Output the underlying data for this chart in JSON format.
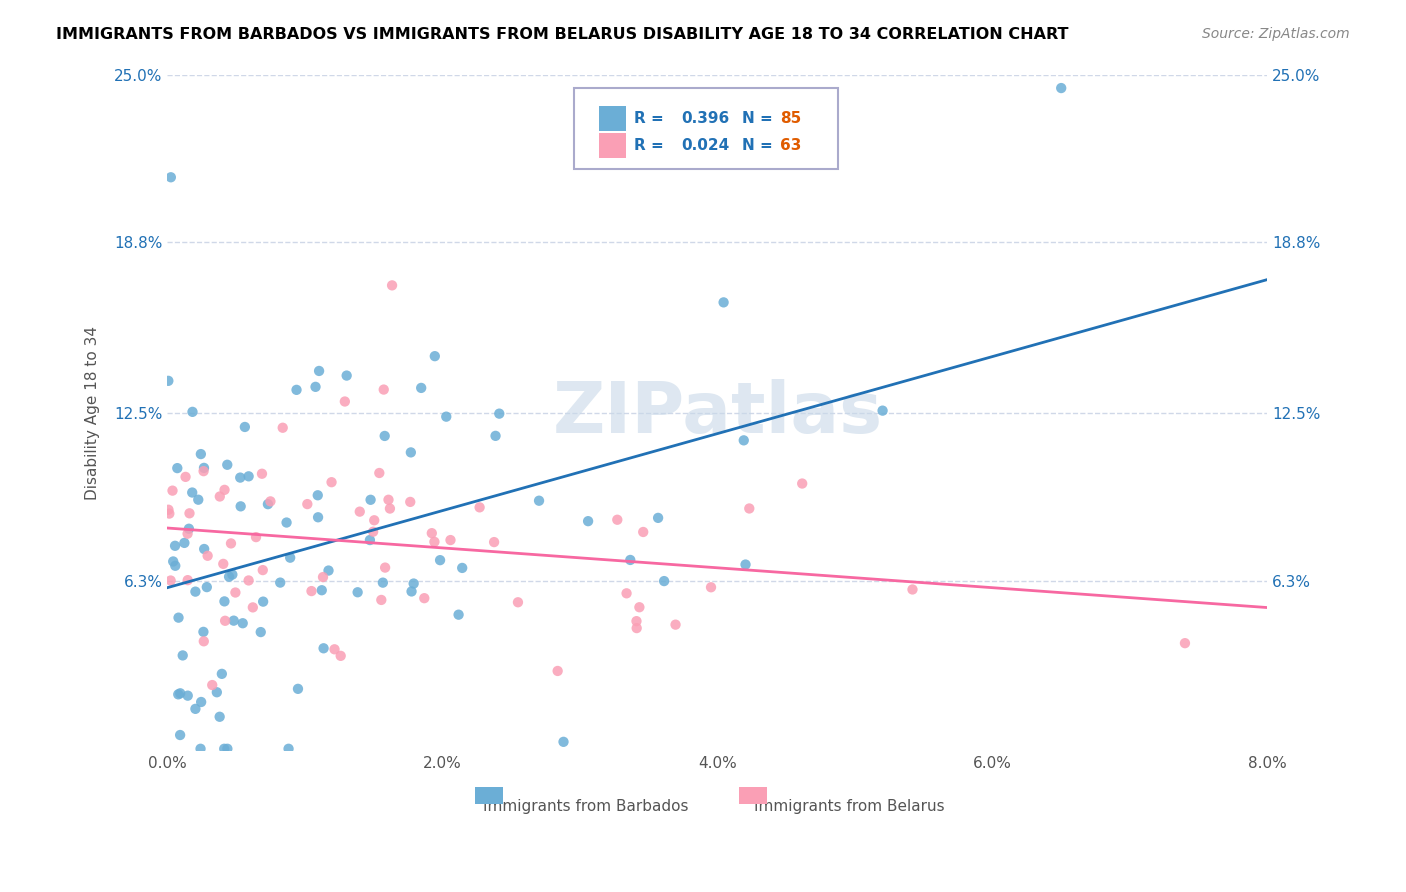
{
  "title": "IMMIGRANTS FROM BARBADOS VS IMMIGRANTS FROM BELARUS DISABILITY AGE 18 TO 34 CORRELATION CHART",
  "source": "Source: ZipAtlas.com",
  "xlabel_blue": "Immigrants from Barbados",
  "xlabel_pink": "Immigrants from Belarus",
  "ylabel": "Disability Age 18 to 34",
  "xlim": [
    0.0,
    0.08
  ],
  "ylim": [
    0.0,
    0.25
  ],
  "yticks": [
    0.0,
    0.063,
    0.125,
    0.188,
    0.25
  ],
  "ytick_labels": [
    "",
    "6.3%",
    "12.5%",
    "18.8%",
    "25.0%"
  ],
  "xtick_labels": [
    "0.0%",
    "2.0%",
    "4.0%",
    "6.0%",
    "8.0%"
  ],
  "xticks": [
    0.0,
    0.02,
    0.04,
    0.06,
    0.08
  ],
  "blue_R": 0.396,
  "blue_N": 85,
  "pink_R": 0.024,
  "pink_N": 63,
  "blue_color": "#6baed6",
  "pink_color": "#fa9fb5",
  "blue_line_color": "#2171b5",
  "pink_line_color": "#f768a1",
  "watermark": "ZIPatlas",
  "watermark_color": "#c8d8e8",
  "legend_R_color": "#2171b5",
  "legend_N_color": "#e05c00",
  "grid_color": "#d0d8e8",
  "title_fontsize": 12,
  "seed": 42
}
